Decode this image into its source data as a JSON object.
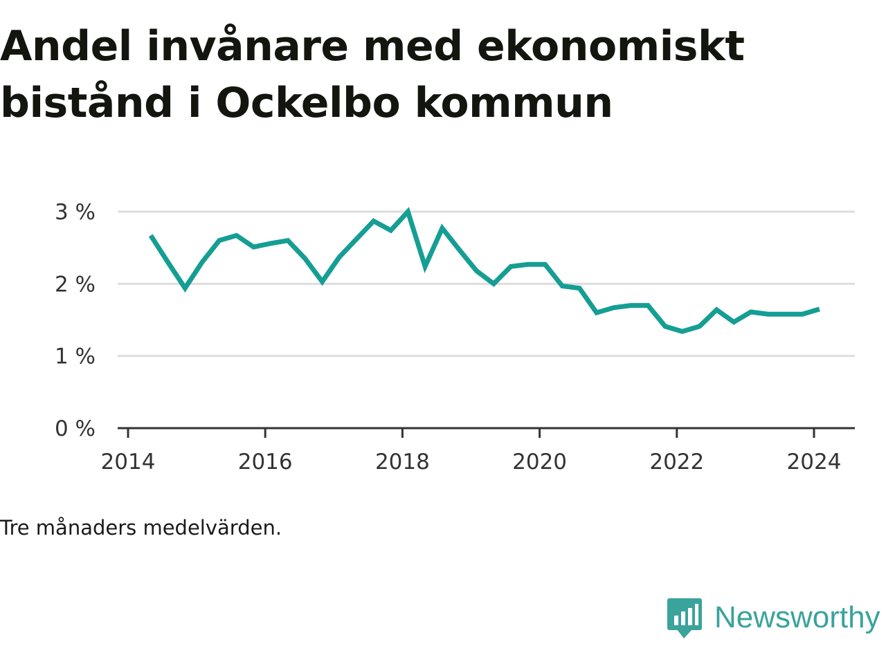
{
  "title": "Andel invånare med ekonomiskt bistånd i Ockelbo kommun",
  "note": "Tre månaders medelvärden.",
  "brand": {
    "name": "Newsworthy",
    "icon": "bar-chart-speech-bubble-icon"
  },
  "colors": {
    "line": "#159e94",
    "grid": "#dddddd",
    "axis": "#333333",
    "brand": "#3aa39b"
  },
  "chart_data": {
    "type": "line",
    "title": "Andel invånare med ekonomiskt bistånd i Ockelbo kommun",
    "xlabel": "",
    "ylabel": "",
    "ylim": [
      0,
      3
    ],
    "xlim": [
      2014.0,
      2024.5
    ],
    "y_ticks": [
      0,
      1,
      2,
      3
    ],
    "y_tick_labels": [
      "0 %",
      "1 %",
      "2 %",
      "3 %"
    ],
    "x_ticks": [
      2014,
      2016,
      2018,
      2020,
      2022,
      2024
    ],
    "x_tick_labels": [
      "2014",
      "2016",
      "2018",
      "2020",
      "2022",
      "2024"
    ],
    "grid": true,
    "series": [
      {
        "points": [
          [
            2014.33,
            2.67
          ],
          [
            2014.58,
            2.3
          ],
          [
            2014.83,
            1.94
          ],
          [
            2015.08,
            2.3
          ],
          [
            2015.33,
            2.6
          ],
          [
            2015.58,
            2.67
          ],
          [
            2015.83,
            2.51
          ],
          [
            2016.08,
            2.56
          ],
          [
            2016.33,
            2.6
          ],
          [
            2016.58,
            2.35
          ],
          [
            2016.83,
            2.03
          ],
          [
            2017.08,
            2.37
          ],
          [
            2017.33,
            2.62
          ],
          [
            2017.58,
            2.87
          ],
          [
            2017.83,
            2.74
          ],
          [
            2018.08,
            3.0
          ],
          [
            2018.33,
            2.24
          ],
          [
            2018.58,
            2.77
          ],
          [
            2018.83,
            2.47
          ],
          [
            2019.08,
            2.18
          ],
          [
            2019.33,
            2.0
          ],
          [
            2019.58,
            2.24
          ],
          [
            2019.83,
            2.27
          ],
          [
            2020.08,
            2.27
          ],
          [
            2020.33,
            1.97
          ],
          [
            2020.58,
            1.94
          ],
          [
            2020.83,
            1.6
          ],
          [
            2021.08,
            1.67
          ],
          [
            2021.33,
            1.7
          ],
          [
            2021.58,
            1.7
          ],
          [
            2021.83,
            1.41
          ],
          [
            2022.08,
            1.34
          ],
          [
            2022.33,
            1.41
          ],
          [
            2022.58,
            1.64
          ],
          [
            2022.83,
            1.47
          ],
          [
            2023.08,
            1.61
          ],
          [
            2023.33,
            1.58
          ],
          [
            2023.58,
            1.58
          ],
          [
            2023.83,
            1.58
          ],
          [
            2024.08,
            1.65
          ]
        ]
      }
    ]
  }
}
